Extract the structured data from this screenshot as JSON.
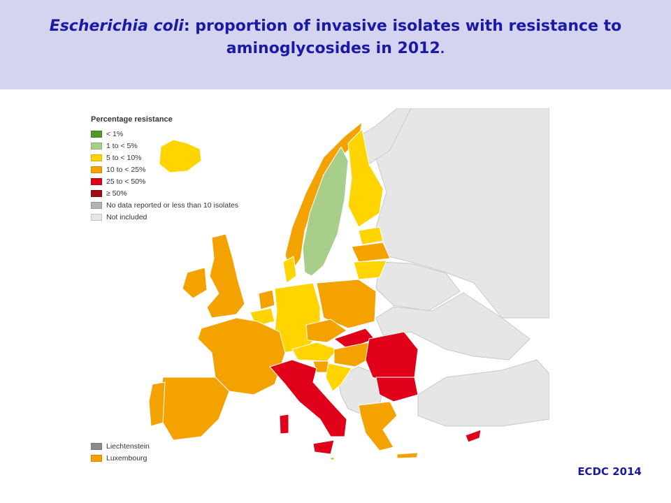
{
  "title": {
    "species": "Escherichia coli",
    "colon": ":",
    "rest_line1": " proportion of invasive isolates with resistance to",
    "rest_line2": "aminoglycosides in 2012",
    "dot": "."
  },
  "legend": {
    "title": "Percentage resistance",
    "items": [
      {
        "label": "< 1%",
        "color": "#4c9a2a"
      },
      {
        "label": "1 to < 5%",
        "color": "#a8cf8a"
      },
      {
        "label": "5 to < 10%",
        "color": "#ffd400"
      },
      {
        "label": "10 to < 25%",
        "color": "#f3a200"
      },
      {
        "label": "25 to < 50%",
        "color": "#e0001a"
      },
      {
        "label": "≥ 50%",
        "color": "#9c0e15"
      },
      {
        "label": "No data reported or less than 10 isolates",
        "color": "#b3b3b3"
      },
      {
        "label": "Not included",
        "color": "#e6e6e6"
      }
    ],
    "small_states": [
      {
        "label": "Liechtenstein",
        "color": "#8c8c8c"
      },
      {
        "label": "Luxembourg",
        "color": "#f3a200"
      }
    ]
  },
  "map_colors": {
    "not_included": "#e6e6e6",
    "green_light": "#a8cf8a",
    "yellow": "#ffd400",
    "orange": "#f3a200",
    "red": "#e0001a",
    "border": "#ffffff"
  },
  "source": "ECDC 2014"
}
